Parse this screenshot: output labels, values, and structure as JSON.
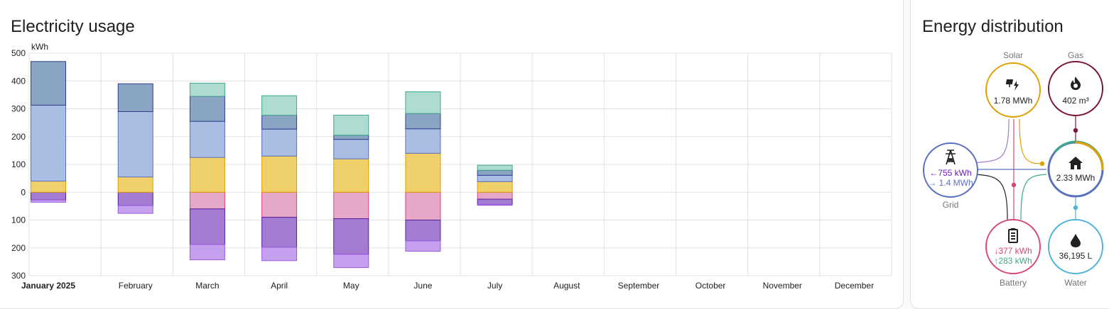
{
  "usage": {
    "title": "Electricity usage",
    "unit": "kWh"
  },
  "distribution": {
    "title": "Energy distribution",
    "solar": {
      "label": "Solar",
      "value": "1.78 MWh"
    },
    "gas": {
      "label": "Gas",
      "value": "402 m³"
    },
    "grid": {
      "label": "Grid",
      "import": "755 kWh",
      "export": "1.4 MWh",
      "import_arrow": "←",
      "export_arrow": "→"
    },
    "home": {
      "value": "2.33 MWh"
    },
    "battery": {
      "label": "Battery",
      "discharge": "377 kWh",
      "charge": "283 kWh",
      "discharge_arrow": "↓",
      "charge_arrow": "↑"
    },
    "water": {
      "label": "Water",
      "value": "36,195 L"
    },
    "colors": {
      "solar": "#e0a000",
      "gas": "#7a1630",
      "grid": "#5b6fbf",
      "grid_import": "#6a1fbf",
      "battery": "#d6477e",
      "battery_charge": "#3fa88a",
      "water": "#4fb3d9",
      "home": "#3fa88a"
    },
    "icons": {
      "solar": "solar-power-icon",
      "gas": "fire-icon",
      "grid": "transmission-tower-icon",
      "home": "home-icon",
      "battery": "battery-icon",
      "water": "water-drop-icon"
    }
  },
  "chart_data": {
    "type": "bar",
    "title": "Electricity usage",
    "ylabel": "kWh",
    "ylim": [
      -300,
      500
    ],
    "yticks": [
      500,
      400,
      300,
      200,
      100,
      0,
      -100,
      -200,
      -300
    ],
    "ytick_labels": [
      "500",
      "400",
      "300",
      "200",
      "100",
      "0",
      "100",
      "200",
      "300"
    ],
    "categories": [
      "January 2025",
      "February",
      "March",
      "April",
      "May",
      "June",
      "July",
      "August",
      "September",
      "October",
      "November",
      "December"
    ],
    "stacked": true,
    "grid": true,
    "series": [
      {
        "fill": "#e5a8c8",
        "stroke": "#d6477e",
        "values": [
          0,
          0,
          -60,
          -90,
          -95,
          -100,
          -25,
          0,
          0,
          0,
          0,
          0
        ]
      },
      {
        "fill": "#a37bd0",
        "stroke": "#5b1fa0",
        "values": [
          -28,
          -48,
          -128,
          -108,
          -128,
          -75,
          -20,
          0,
          0,
          0,
          0,
          0
        ]
      },
      {
        "fill": "#c5a0ef",
        "stroke": "#9b5be0",
        "values": [
          -8,
          -28,
          -55,
          -48,
          -48,
          -37,
          -2,
          0,
          0,
          0,
          0,
          0
        ]
      },
      {
        "fill": "#f0d06a",
        "stroke": "#e0a000",
        "values": [
          40,
          55,
          125,
          130,
          120,
          140,
          38,
          0,
          0,
          0,
          0,
          0
        ]
      },
      {
        "fill": "#aabde2",
        "stroke": "#5b6fbf",
        "values": [
          273,
          235,
          130,
          97,
          70,
          88,
          23,
          0,
          0,
          0,
          0,
          0
        ]
      },
      {
        "fill": "#8aa4c4",
        "stroke": "#2f3f8f",
        "values": [
          157,
          100,
          90,
          50,
          15,
          55,
          18,
          0,
          0,
          0,
          0,
          0
        ]
      },
      {
        "fill": "#aedcd3",
        "stroke": "#3fa88a",
        "values": [
          0,
          0,
          47,
          70,
          72,
          78,
          18,
          0,
          0,
          0,
          0,
          0
        ]
      }
    ]
  }
}
